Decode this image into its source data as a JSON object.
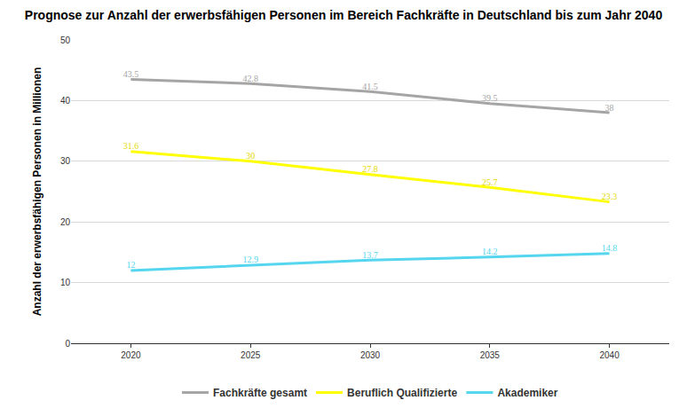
{
  "chart_data": {
    "type": "line",
    "title": "Prognose zur Anzahl der erwerbsfähigen Personen im Bereich Fachkräfte in Deutschland bis zum Jahr 2040",
    "y_label": "Anzahl der erwerbsfähigen Personen in Millionen",
    "categories": [
      "2020",
      "2025",
      "2030",
      "2035",
      "2040"
    ],
    "series": [
      {
        "name": "Fachkräfte gesamt",
        "color": "#a5a5a5",
        "values": [
          43.5,
          42.8,
          41.5,
          39.5,
          38
        ]
      },
      {
        "name": "Beruflich Qualifizierte",
        "color": "#ffff00",
        "values": [
          31.6,
          30,
          27.8,
          25.7,
          23.3
        ]
      },
      {
        "name": "Akademiker",
        "color": "#55d6ee",
        "values": [
          12,
          12.9,
          13.7,
          14.2,
          14.8
        ]
      }
    ],
    "ylim": [
      0,
      50
    ],
    "yticks": [
      0,
      10,
      20,
      30,
      40,
      50
    ],
    "grid": true,
    "legend": "bottom",
    "data_labels": true
  }
}
